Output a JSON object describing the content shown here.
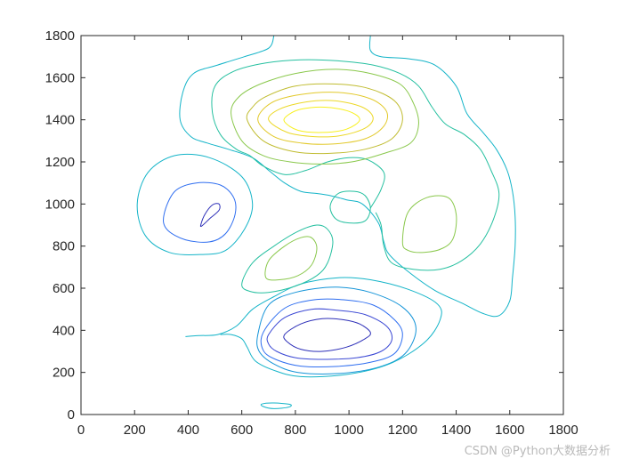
{
  "chart_data": {
    "type": "contour",
    "title": "",
    "xlabel": "",
    "ylabel": "",
    "xlim": [
      0,
      1800
    ],
    "ylim": [
      0,
      1800
    ],
    "x_ticks": [
      0,
      200,
      400,
      600,
      800,
      1000,
      1200,
      1400,
      1600,
      1800
    ],
    "y_ticks": [
      0,
      200,
      400,
      600,
      800,
      1000,
      1200,
      1400,
      1600,
      1800
    ],
    "grid": false,
    "colormap": "parula",
    "contours": [
      {
        "level": 1,
        "color": "#2d2fb8",
        "closed": true,
        "points": [
          [
            760,
            380
          ],
          [
            820,
            430
          ],
          [
            900,
            455
          ],
          [
            980,
            450
          ],
          [
            1040,
            430
          ],
          [
            1080,
            390
          ],
          [
            1060,
            360
          ],
          [
            990,
            320
          ],
          [
            900,
            300
          ],
          [
            820,
            310
          ],
          [
            770,
            345
          ]
        ]
      },
      {
        "level": 1,
        "color": "#2d2fb8",
        "closed": true,
        "points": [
          [
            450,
            895
          ],
          [
            480,
            930
          ],
          [
            515,
            970
          ],
          [
            515,
            1000
          ],
          [
            490,
            995
          ],
          [
            462,
            950
          ],
          [
            448,
            905
          ]
        ]
      },
      {
        "level": 2,
        "color": "#3b48d4",
        "closed": true,
        "points": [
          [
            700,
            380
          ],
          [
            760,
            460
          ],
          [
            860,
            500
          ],
          [
            960,
            495
          ],
          [
            1060,
            475
          ],
          [
            1140,
            420
          ],
          [
            1160,
            355
          ],
          [
            1120,
            300
          ],
          [
            1030,
            270
          ],
          [
            900,
            262
          ],
          [
            800,
            270
          ],
          [
            730,
            300
          ],
          [
            700,
            335
          ]
        ]
      },
      {
        "level": 3,
        "color": "#2f6ef0",
        "closed": true,
        "points": [
          [
            680,
            390
          ],
          [
            760,
            505
          ],
          [
            870,
            545
          ],
          [
            980,
            545
          ],
          [
            1090,
            520
          ],
          [
            1170,
            450
          ],
          [
            1200,
            380
          ],
          [
            1170,
            290
          ],
          [
            1080,
            248
          ],
          [
            950,
            228
          ],
          [
            820,
            230
          ],
          [
            730,
            260
          ],
          [
            680,
            305
          ]
        ]
      },
      {
        "level": 3,
        "color": "#2f6ef0",
        "closed": true,
        "points": [
          [
            310,
            950
          ],
          [
            350,
            1060
          ],
          [
            430,
            1100
          ],
          [
            520,
            1090
          ],
          [
            570,
            1030
          ],
          [
            575,
            950
          ],
          [
            540,
            860
          ],
          [
            480,
            820
          ],
          [
            390,
            830
          ],
          [
            320,
            880
          ]
        ]
      },
      {
        "level": 4,
        "color": "#1494d8",
        "closed": true,
        "points": [
          [
            660,
            380
          ],
          [
            700,
            520
          ],
          [
            800,
            580
          ],
          [
            950,
            605
          ],
          [
            1080,
            580
          ],
          [
            1200,
            510
          ],
          [
            1250,
            410
          ],
          [
            1210,
            290
          ],
          [
            1110,
            225
          ],
          [
            960,
            195
          ],
          [
            810,
            200
          ],
          [
            720,
            240
          ],
          [
            665,
            300
          ]
        ]
      },
      {
        "level": 5,
        "color": "#14b4c8",
        "closed": false,
        "points": [
          [
            390,
            370
          ],
          [
            440,
            375
          ],
          [
            510,
            380
          ],
          [
            580,
            420
          ],
          [
            640,
            500
          ],
          [
            720,
            560
          ],
          [
            820,
            620
          ],
          [
            960,
            650
          ],
          [
            1080,
            640
          ],
          [
            1220,
            595
          ],
          [
            1330,
            525
          ],
          [
            1340,
            450
          ],
          [
            1280,
            340
          ],
          [
            1150,
            240
          ],
          [
            990,
            190
          ],
          [
            820,
            180
          ],
          [
            720,
            210
          ],
          [
            650,
            255
          ],
          [
            620,
            320
          ],
          [
            600,
            360
          ],
          [
            560,
            380
          ],
          [
            520,
            380
          ]
        ]
      },
      {
        "level": 5,
        "color": "#14b4c8",
        "closed": true,
        "points": [
          [
            675,
            50
          ],
          [
            720,
            55
          ],
          [
            780,
            48
          ],
          [
            775,
            35
          ],
          [
            720,
            28
          ],
          [
            680,
            38
          ]
        ]
      },
      {
        "level": 5,
        "color": "#14b4c8",
        "closed": true,
        "points": [
          [
            210,
            1000
          ],
          [
            250,
            1150
          ],
          [
            350,
            1230
          ],
          [
            480,
            1220
          ],
          [
            600,
            1130
          ],
          [
            640,
            1000
          ],
          [
            610,
            880
          ],
          [
            540,
            780
          ],
          [
            450,
            760
          ],
          [
            330,
            770
          ],
          [
            240,
            850
          ]
        ]
      },
      {
        "level": 5,
        "color": "#14b4c8",
        "closed": false,
        "points": [
          [
            720,
            1800
          ],
          [
            700,
            1740
          ],
          [
            610,
            1700
          ],
          [
            510,
            1660
          ],
          [
            420,
            1620
          ],
          [
            380,
            1530
          ],
          [
            370,
            1400
          ],
          [
            410,
            1320
          ],
          [
            470,
            1290
          ],
          [
            550,
            1260
          ],
          [
            640,
            1220
          ],
          [
            700,
            1160
          ],
          [
            760,
            1100
          ],
          [
            820,
            1060
          ],
          [
            880,
            1050
          ],
          [
            930,
            1040
          ],
          [
            990,
            1020
          ],
          [
            1050,
            1000
          ],
          [
            1110,
            910
          ],
          [
            1130,
            820
          ],
          [
            1150,
            760
          ],
          [
            1220,
            680
          ],
          [
            1320,
            590
          ],
          [
            1420,
            530
          ],
          [
            1500,
            480
          ],
          [
            1560,
            470
          ],
          [
            1600,
            540
          ],
          [
            1610,
            650
          ],
          [
            1620,
            800
          ],
          [
            1620,
            940
          ],
          [
            1610,
            1060
          ],
          [
            1590,
            1160
          ],
          [
            1550,
            1260
          ],
          [
            1500,
            1340
          ],
          [
            1440,
            1430
          ],
          [
            1400,
            1560
          ],
          [
            1320,
            1660
          ],
          [
            1220,
            1690
          ],
          [
            1120,
            1700
          ],
          [
            1080,
            1730
          ],
          [
            1080,
            1800
          ]
        ]
      },
      {
        "level": 6,
        "color": "#26c0a0",
        "closed": true,
        "points": [
          [
            600,
            620
          ],
          [
            640,
            720
          ],
          [
            720,
            800
          ],
          [
            810,
            870
          ],
          [
            880,
            900
          ],
          [
            920,
            880
          ],
          [
            940,
            820
          ],
          [
            920,
            720
          ],
          [
            880,
            660
          ],
          [
            800,
            610
          ],
          [
            700,
            580
          ],
          [
            630,
            585
          ]
        ]
      },
      {
        "level": 6,
        "color": "#26c0a0",
        "closed": true,
        "points": [
          [
            930,
            990
          ],
          [
            960,
            1050
          ],
          [
            1020,
            1060
          ],
          [
            1060,
            1040
          ],
          [
            1080,
            980
          ],
          [
            1060,
            920
          ],
          [
            1000,
            910
          ],
          [
            950,
            930
          ]
        ]
      },
      {
        "level": 6,
        "color": "#26c0a0",
        "closed": false,
        "points": [
          [
            1080,
            980
          ],
          [
            1120,
            1070
          ],
          [
            1130,
            1150
          ],
          [
            1070,
            1210
          ],
          [
            1000,
            1220
          ],
          [
            920,
            1200
          ],
          [
            840,
            1160
          ],
          [
            760,
            1140
          ],
          [
            680,
            1180
          ],
          [
            630,
            1230
          ],
          [
            580,
            1260
          ],
          [
            520,
            1330
          ],
          [
            490,
            1440
          ],
          [
            500,
            1560
          ],
          [
            570,
            1630
          ],
          [
            690,
            1670
          ],
          [
            820,
            1685
          ],
          [
            960,
            1680
          ],
          [
            1090,
            1660
          ],
          [
            1190,
            1620
          ],
          [
            1260,
            1560
          ],
          [
            1310,
            1460
          ],
          [
            1360,
            1380
          ],
          [
            1430,
            1330
          ],
          [
            1490,
            1260
          ],
          [
            1530,
            1160
          ],
          [
            1560,
            1050
          ],
          [
            1540,
            930
          ],
          [
            1490,
            810
          ],
          [
            1420,
            730
          ],
          [
            1340,
            690
          ],
          [
            1240,
            690
          ],
          [
            1160,
            720
          ],
          [
            1130,
            800
          ],
          [
            1120,
            900
          ],
          [
            1100,
            960
          ]
        ]
      },
      {
        "level": 7,
        "color": "#8ac84c",
        "closed": true,
        "points": [
          [
            690,
            650
          ],
          [
            700,
            730
          ],
          [
            760,
            800
          ],
          [
            820,
            840
          ],
          [
            860,
            840
          ],
          [
            880,
            790
          ],
          [
            860,
            710
          ],
          [
            810,
            660
          ],
          [
            740,
            640
          ]
        ]
      },
      {
        "level": 7,
        "color": "#8ac84c",
        "closed": true,
        "points": [
          [
            1200,
            820
          ],
          [
            1220,
            960
          ],
          [
            1290,
            1030
          ],
          [
            1370,
            1030
          ],
          [
            1400,
            950
          ],
          [
            1390,
            840
          ],
          [
            1350,
            790
          ],
          [
            1280,
            770
          ],
          [
            1220,
            780
          ]
        ]
      },
      {
        "level": 7,
        "color": "#8ac84c",
        "closed": true,
        "points": [
          [
            560,
            1430
          ],
          [
            600,
            1300
          ],
          [
            680,
            1230
          ],
          [
            780,
            1200
          ],
          [
            890,
            1190
          ],
          [
            1010,
            1200
          ],
          [
            1130,
            1240
          ],
          [
            1230,
            1290
          ],
          [
            1260,
            1380
          ],
          [
            1240,
            1480
          ],
          [
            1190,
            1570
          ],
          [
            1080,
            1620
          ],
          [
            950,
            1640
          ],
          [
            800,
            1620
          ],
          [
            670,
            1570
          ],
          [
            590,
            1510
          ]
        ]
      },
      {
        "level": 8,
        "color": "#c0bc30",
        "closed": true,
        "points": [
          [
            620,
            1400
          ],
          [
            680,
            1300
          ],
          [
            790,
            1250
          ],
          [
            920,
            1240
          ],
          [
            1060,
            1260
          ],
          [
            1160,
            1310
          ],
          [
            1200,
            1400
          ],
          [
            1170,
            1490
          ],
          [
            1070,
            1550
          ],
          [
            940,
            1570
          ],
          [
            800,
            1560
          ],
          [
            690,
            1510
          ],
          [
            640,
            1460
          ]
        ]
      },
      {
        "level": 9,
        "color": "#e2c92a",
        "closed": true,
        "points": [
          [
            660,
            1400
          ],
          [
            720,
            1320
          ],
          [
            820,
            1290
          ],
          [
            940,
            1285
          ],
          [
            1060,
            1310
          ],
          [
            1130,
            1370
          ],
          [
            1140,
            1440
          ],
          [
            1080,
            1500
          ],
          [
            960,
            1530
          ],
          [
            820,
            1520
          ],
          [
            710,
            1480
          ]
        ]
      },
      {
        "level": 10,
        "color": "#ecd826",
        "closed": true,
        "points": [
          [
            700,
            1400
          ],
          [
            770,
            1340
          ],
          [
            870,
            1320
          ],
          [
            970,
            1325
          ],
          [
            1060,
            1360
          ],
          [
            1090,
            1410
          ],
          [
            1050,
            1460
          ],
          [
            950,
            1490
          ],
          [
            840,
            1485
          ],
          [
            740,
            1450
          ]
        ]
      },
      {
        "level": 11,
        "color": "#f7f01e",
        "closed": true,
        "points": [
          [
            760,
            1390
          ],
          [
            810,
            1350
          ],
          [
            900,
            1340
          ],
          [
            990,
            1355
          ],
          [
            1040,
            1400
          ],
          [
            1000,
            1440
          ],
          [
            910,
            1460
          ],
          [
            820,
            1450
          ],
          [
            770,
            1420
          ]
        ]
      }
    ]
  },
  "watermark": "CSDN @Python大数据分析"
}
